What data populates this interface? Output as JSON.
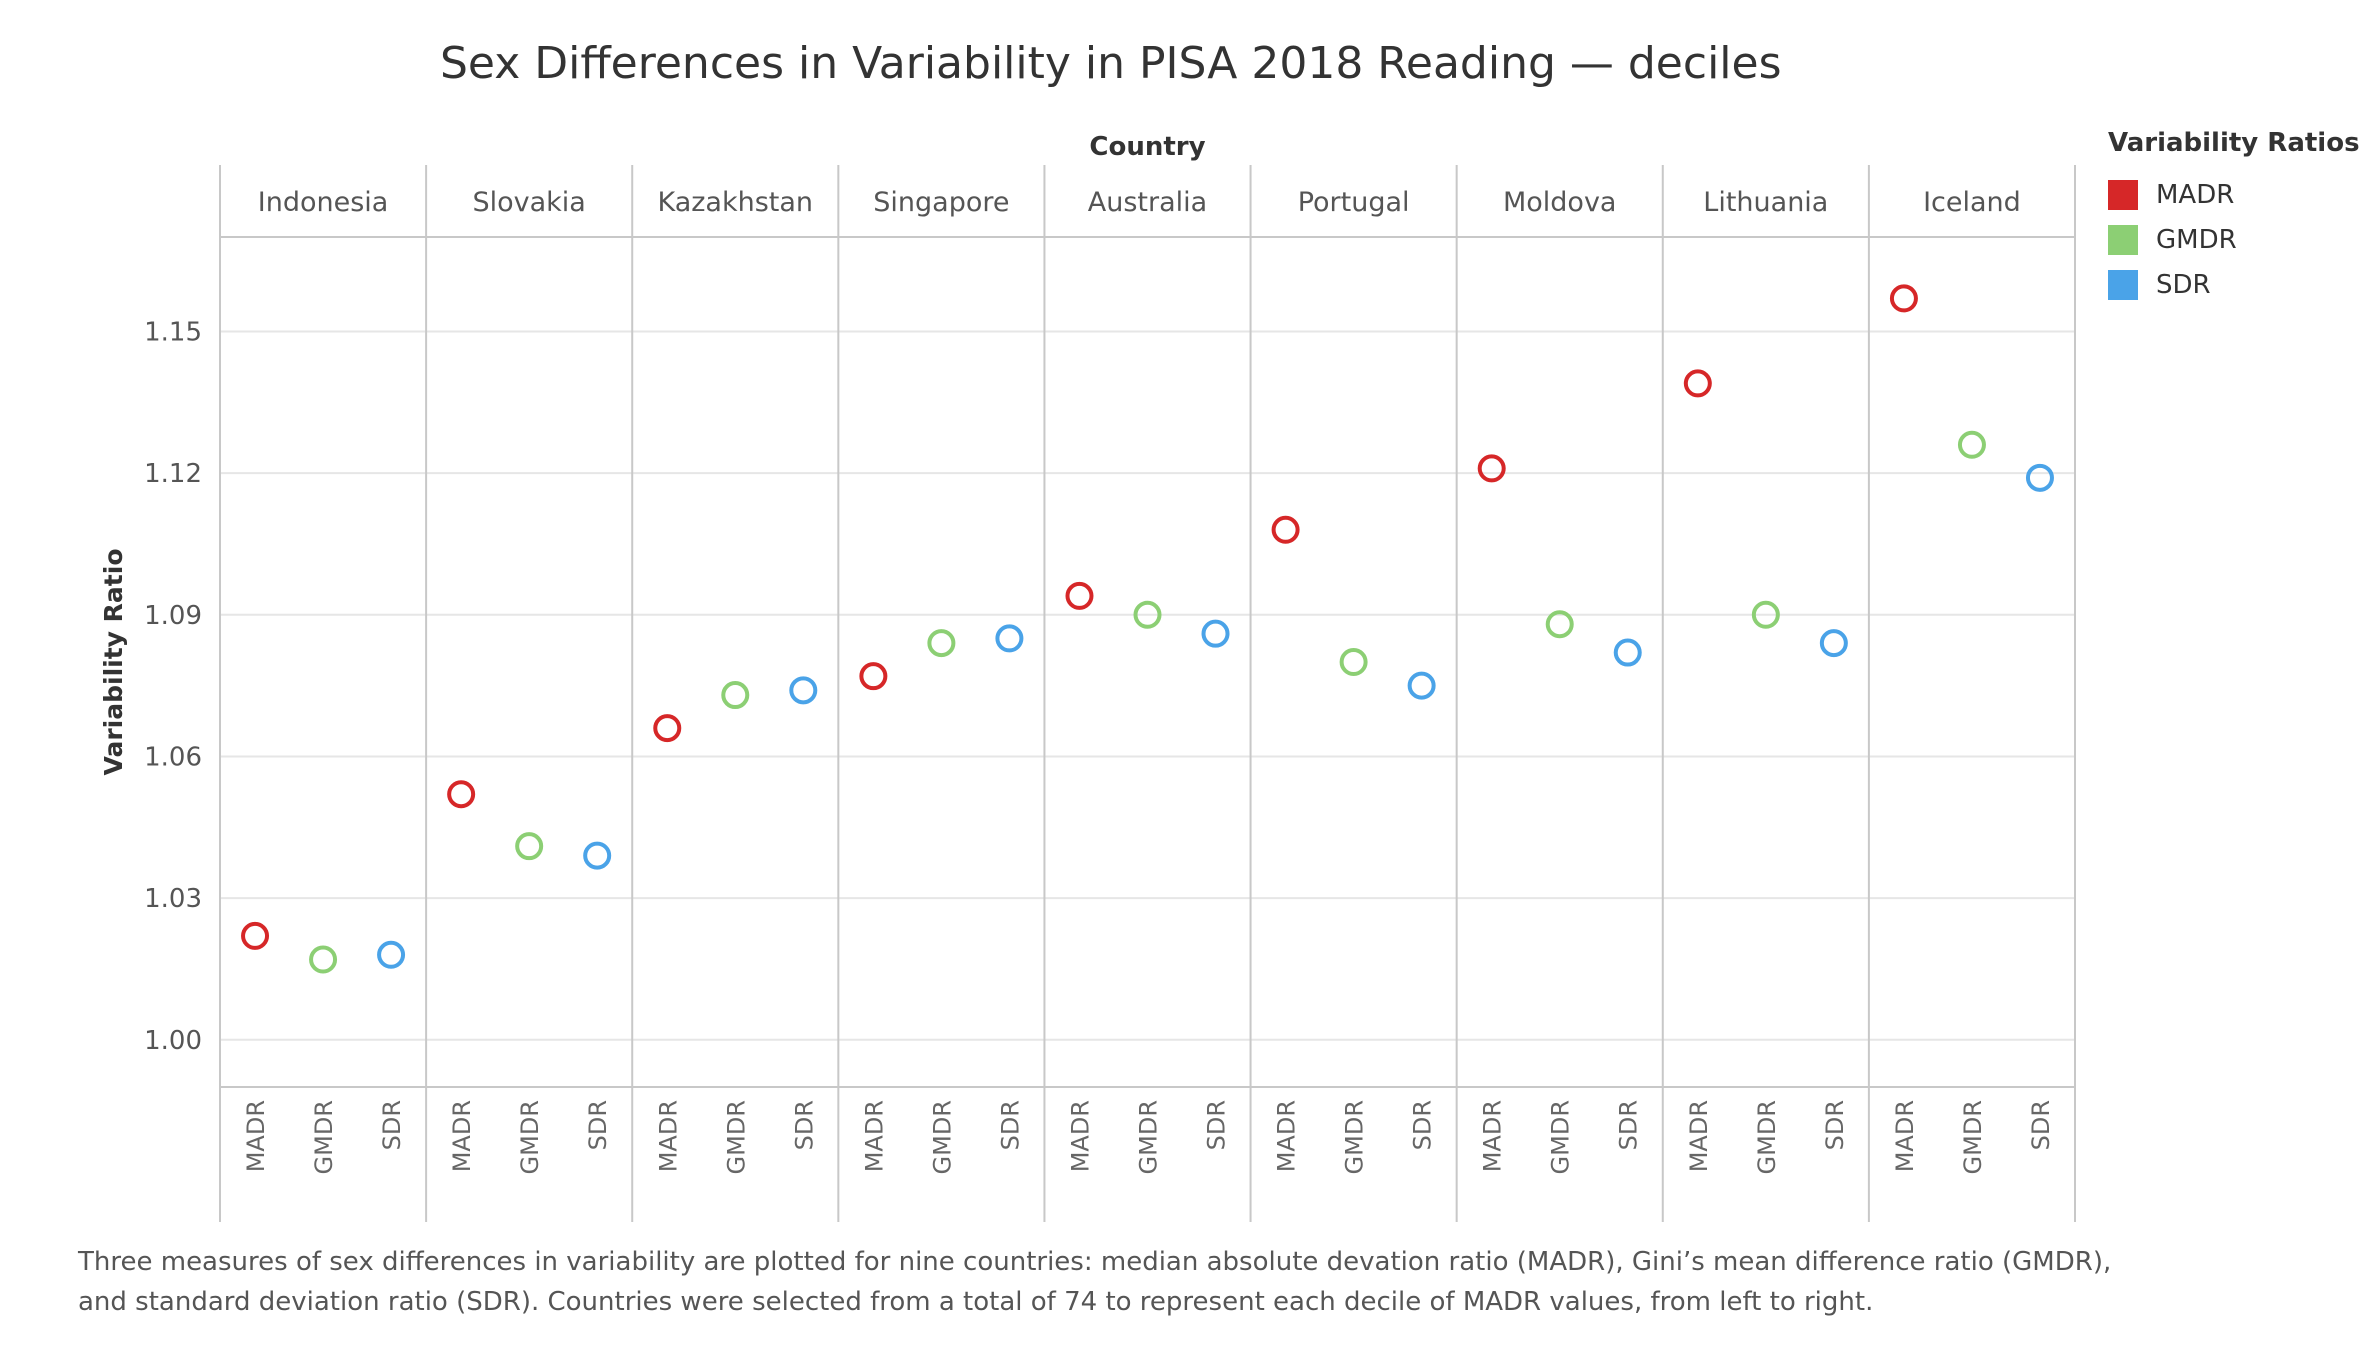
{
  "chart_data": {
    "type": "scatter",
    "title": "Sex Differences in Variability in PISA 2018 Reading — deciles",
    "column_header": "Country",
    "ylabel": "Variability Ratio",
    "ylim": [
      0.99,
      1.17
    ],
    "yticks": [
      "1.00",
      "1.03",
      "1.06",
      "1.09",
      "1.12",
      "1.15"
    ],
    "grid": true,
    "legend": {
      "title": "Variability Ratios",
      "placement": "right",
      "entries": [
        {
          "name": "MADR",
          "color": "#d62728"
        },
        {
          "name": "GMDR",
          "color": "#8ccf74"
        },
        {
          "name": "SDR",
          "color": "#4aa3e8"
        }
      ]
    },
    "measures": [
      "MADR",
      "GMDR",
      "SDR"
    ],
    "countries": [
      {
        "name": "Indonesia",
        "values": [
          1.022,
          1.017,
          1.018
        ]
      },
      {
        "name": "Slovakia",
        "values": [
          1.052,
          1.041,
          1.039
        ]
      },
      {
        "name": "Kazakhstan",
        "values": [
          1.066,
          1.073,
          1.074
        ]
      },
      {
        "name": "Singapore",
        "values": [
          1.077,
          1.084,
          1.085
        ]
      },
      {
        "name": "Australia",
        "values": [
          1.094,
          1.09,
          1.086
        ]
      },
      {
        "name": "Portugal",
        "values": [
          1.108,
          1.08,
          1.075
        ]
      },
      {
        "name": "Moldova",
        "values": [
          1.121,
          1.088,
          1.082
        ]
      },
      {
        "name": "Lithuania",
        "values": [
          1.139,
          1.09,
          1.084
        ]
      },
      {
        "name": "Iceland",
        "values": [
          1.157,
          1.126,
          1.119
        ]
      }
    ]
  },
  "caption": {
    "line1": "Three measures of sex differences in variability are plotted for nine countries: median absolute devation ratio (MADR), Gini’s mean difference ratio (GMDR),",
    "line2": "and standard deviation ratio (SDR). Countries were selected from a total of 74 to represent each decile of MADR values, from left to right."
  }
}
